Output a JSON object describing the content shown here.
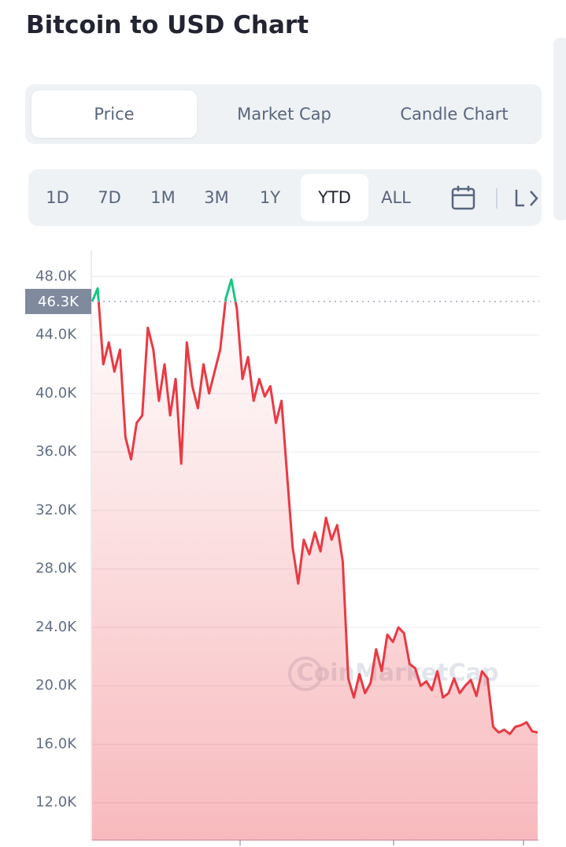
{
  "header": {
    "title": "Bitcoin to USD Chart"
  },
  "tabs": [
    "Price",
    "Market Cap",
    "Candle Chart"
  ],
  "active_tab": 0,
  "ranges": [
    "1D",
    "7D",
    "1M",
    "3M",
    "1Y",
    "YTD",
    "ALL"
  ],
  "active_range": 5,
  "chart_data": {
    "type": "line",
    "watermark": "CoinMarketCap",
    "values": [
      46300,
      47200,
      42000,
      43500,
      41500,
      43000,
      37000,
      35500,
      38000,
      38500,
      44500,
      43000,
      39500,
      42000,
      38500,
      41000,
      35200,
      43500,
      40500,
      39000,
      42000,
      40000,
      41500,
      43000,
      46500,
      47800,
      45800,
      41000,
      42500,
      39500,
      41000,
      39800,
      40500,
      38000,
      39500,
      34500,
      29500,
      27000,
      30000,
      29000,
      30500,
      29200,
      31500,
      30000,
      31000,
      28500,
      20500,
      19200,
      20800,
      19500,
      20200,
      22500,
      21000,
      23500,
      23000,
      24000,
      23600,
      21500,
      21200,
      20000,
      20300,
      19700,
      21000,
      19200,
      19500,
      20500,
      19500,
      20000,
      20400,
      19300,
      21000,
      20500,
      17200,
      16800,
      17000,
      16700,
      17200,
      17300,
      17500,
      16900,
      16800
    ],
    "up_color": "#16c784",
    "down_color": "#ea3943",
    "reference": {
      "value": 46300,
      "label": "46.3K"
    },
    "ylim": [
      9400,
      49800
    ],
    "yticks": [
      {
        "value": 12000,
        "label": "12.0K"
      },
      {
        "value": 16000,
        "label": "16.0K"
      },
      {
        "value": 20000,
        "label": "20.0K"
      },
      {
        "value": 24000,
        "label": "24.0K"
      },
      {
        "value": 28000,
        "label": "28.0K"
      },
      {
        "value": 32000,
        "label": "32.0K"
      },
      {
        "value": 36000,
        "label": "36.0K"
      },
      {
        "value": 40000,
        "label": "40.0K"
      },
      {
        "value": 44000,
        "label": "44.0K"
      },
      {
        "value": 48000,
        "label": "48.0K"
      }
    ],
    "grid": true
  }
}
